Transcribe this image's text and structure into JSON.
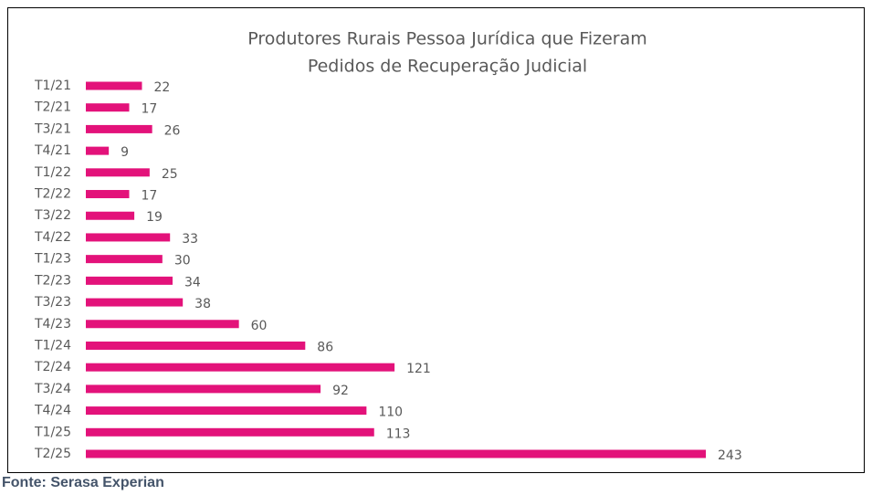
{
  "chart_data": {
    "type": "barh",
    "title": [
      "Produtores Rurais Pessoa Jurídica que Fizeram",
      "Pedidos de Recuperação Judicial"
    ],
    "categories": [
      "T1/21",
      "T2/21",
      "T3/21",
      "T4/21",
      "T1/22",
      "T2/22",
      "T3/22",
      "T4/22",
      "T1/23",
      "T2/23",
      "T3/23",
      "T4/23",
      "T1/24",
      "T2/24",
      "T3/24",
      "T4/24",
      "T1/25",
      "T2/25"
    ],
    "values": [
      22,
      17,
      26,
      9,
      25,
      17,
      19,
      33,
      30,
      34,
      38,
      60,
      86,
      121,
      92,
      110,
      113,
      243
    ],
    "color": "#e3127a",
    "source": "Fonte: Serasa Experian"
  }
}
